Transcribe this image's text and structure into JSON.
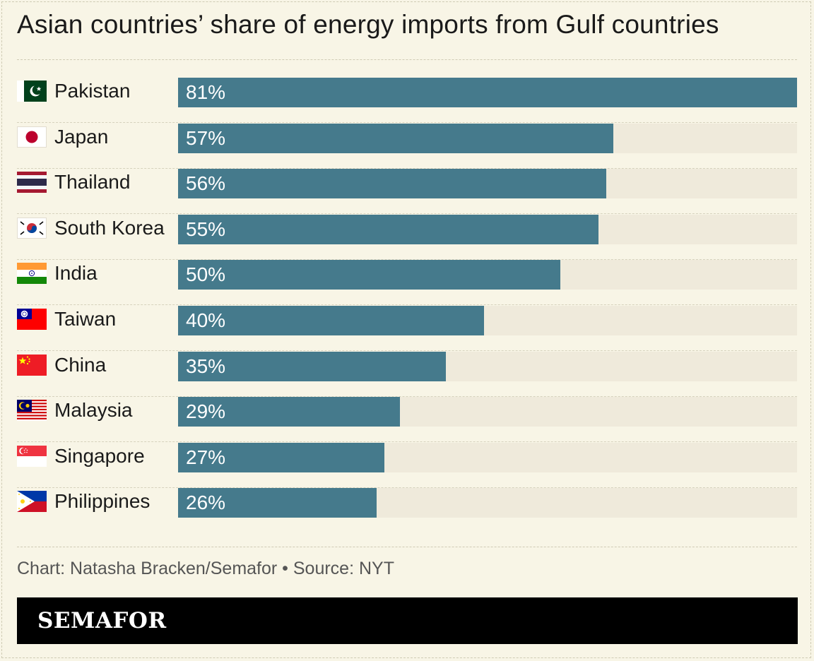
{
  "title": "Asian countries’ share of energy imports from Gulf countries",
  "source": "Chart: Natasha Bracken/Semafor • Source: NYT",
  "brand": "SEMAFOR",
  "colors": {
    "background": "#f8f5e6",
    "bar": "#457a8c",
    "track": "#efeadb",
    "logo_bar": "#000000"
  },
  "chart_data": {
    "type": "bar",
    "orientation": "horizontal",
    "title": "Asian countries’ share of energy imports from Gulf countries",
    "categories": [
      "Pakistan",
      "Japan",
      "Thailand",
      "South Korea",
      "India",
      "Taiwan",
      "China",
      "Malaysia",
      "Singapore",
      "Philippines"
    ],
    "values": [
      81,
      57,
      56,
      55,
      50,
      40,
      35,
      29,
      27,
      26
    ],
    "labels": [
      "81%",
      "57%",
      "56%",
      "55%",
      "50%",
      "40%",
      "35%",
      "29%",
      "27%",
      "26%"
    ],
    "flag_icons": [
      "pakistan-flag-icon",
      "japan-flag-icon",
      "thailand-flag-icon",
      "south-korea-flag-icon",
      "india-flag-icon",
      "taiwan-flag-icon",
      "china-flag-icon",
      "malaysia-flag-icon",
      "singapore-flag-icon",
      "philippines-flag-icon"
    ],
    "unit": "%",
    "xlim": [
      0,
      81
    ],
    "grid": false,
    "legend": "none"
  }
}
